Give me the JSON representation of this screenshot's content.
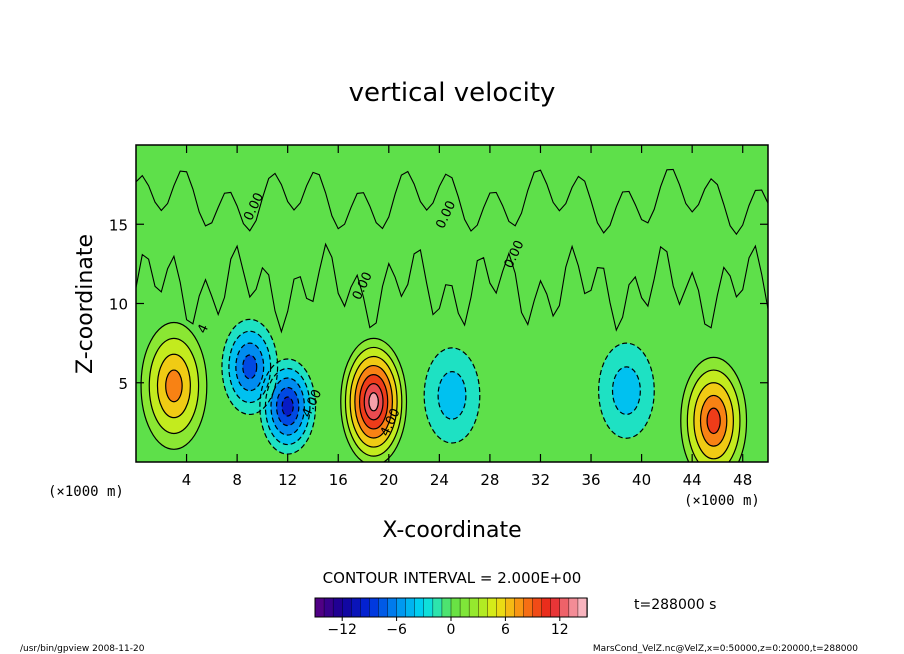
{
  "chart_data": {
    "type": "heatmap",
    "title": "vertical velocity",
    "xlabel": "X-coordinate",
    "ylabel": "Z-coordinate",
    "x_units_left": "(×1000 m)",
    "x_units_right": "(×1000 m)",
    "xlim": [
      0,
      50
    ],
    "ylim": [
      0,
      20
    ],
    "x_ticks": [
      "4",
      "8",
      "12",
      "16",
      "20",
      "24",
      "28",
      "32",
      "36",
      "40",
      "44",
      "48"
    ],
    "y_ticks": [
      "5",
      "10",
      "15"
    ],
    "contour_interval_text": "CONTOUR INTERVAL = 2.000E+00",
    "time_text": "t=288000  s",
    "colorbar": {
      "min": -15,
      "max": 15,
      "ticks": [
        "−12",
        "−6",
        "0",
        "6",
        "12"
      ]
    },
    "contour_labels": [
      {
        "text": "4",
        "x": 5.6,
        "z": 8.3
      },
      {
        "text": "4.00",
        "x": 14.2,
        "z": 3.6
      },
      {
        "text": "4.00",
        "x": 20.4,
        "z": 2.4
      },
      {
        "text": "0.00",
        "x": 9.6,
        "z": 16.0
      },
      {
        "text": "0.00",
        "x": 18.2,
        "z": 11.0
      },
      {
        "text": "0.00",
        "x": 24.8,
        "z": 15.5
      },
      {
        "text": "0.00",
        "x": 30.2,
        "z": 13.0
      }
    ],
    "features": [
      {
        "kind": "updraft",
        "x_center": 3.0,
        "z_center": 4.8,
        "peak": 9
      },
      {
        "kind": "updraft",
        "x_center": 18.8,
        "z_center": 3.8,
        "peak": 14
      },
      {
        "kind": "updraft",
        "x_center": 45.7,
        "z_center": 2.6,
        "peak": 10
      },
      {
        "kind": "downdraft",
        "x_center": 12.0,
        "z_center": 3.5,
        "peak": -11
      },
      {
        "kind": "downdraft",
        "x_center": 9.0,
        "z_center": 6.0,
        "peak": -8
      },
      {
        "kind": "downdraft",
        "x_center": 25.0,
        "z_center": 4.2,
        "peak": -5
      },
      {
        "kind": "downdraft",
        "x_center": 38.8,
        "z_center": 4.5,
        "peak": -4
      }
    ],
    "background_value": 0,
    "legend": "none"
  },
  "footer": {
    "left": "/usr/bin/gpview   2008-11-20",
    "right": "MarsCond_VelZ.nc@VelZ,x=0:50000,z=0:20000,t=288000"
  },
  "colors": {
    "background_field": "#5ee04a",
    "frame": "#000000"
  }
}
